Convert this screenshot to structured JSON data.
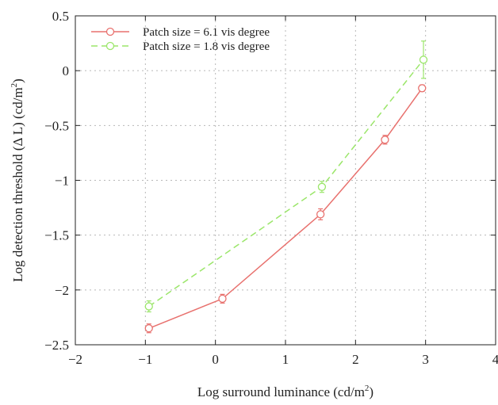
{
  "chart_data": {
    "type": "line",
    "title": "",
    "xlabel": "Log surround luminance (cd/m",
    "xlabel_sup": "2",
    "xlabel_tail": ")",
    "ylabel": "Log detection threshold (Δ L) (cd/m",
    "ylabel_sup": "2",
    "ylabel_tail": ")",
    "xlim": [
      -2,
      4
    ],
    "ylim": [
      -2.5,
      0.5
    ],
    "xticks": [
      -2,
      -1,
      0,
      1,
      2,
      3,
      4
    ],
    "xtick_labels": [
      "−2",
      "−1",
      "0",
      "1",
      "2",
      "3",
      "4"
    ],
    "yticks": [
      0.5,
      0,
      -0.5,
      -1,
      -1.5,
      -2,
      -2.5
    ],
    "ytick_labels": [
      "0.5",
      "0",
      "−0.5",
      "−1",
      "−1.5",
      "−2",
      "−2.5"
    ],
    "grid": true,
    "legend_position": "top-left",
    "series": [
      {
        "name": "Patch size = 6.1 vis degree",
        "color": "#e8716e",
        "dash": "solid",
        "x": [
          -0.95,
          0.1,
          1.5,
          2.42,
          2.95
        ],
        "y": [
          -2.35,
          -2.08,
          -1.31,
          -0.63,
          -0.16
        ],
        "err": [
          0.04,
          0.04,
          0.05,
          0.04,
          0.03
        ]
      },
      {
        "name": "Patch size = 1.8 vis degree",
        "color": "#9be66a",
        "dash": "dashed",
        "x": [
          -0.95,
          1.52,
          2.97
        ],
        "y": [
          -2.15,
          -1.06,
          0.1
        ],
        "err": [
          0.05,
          0.05,
          0.17
        ]
      }
    ]
  }
}
